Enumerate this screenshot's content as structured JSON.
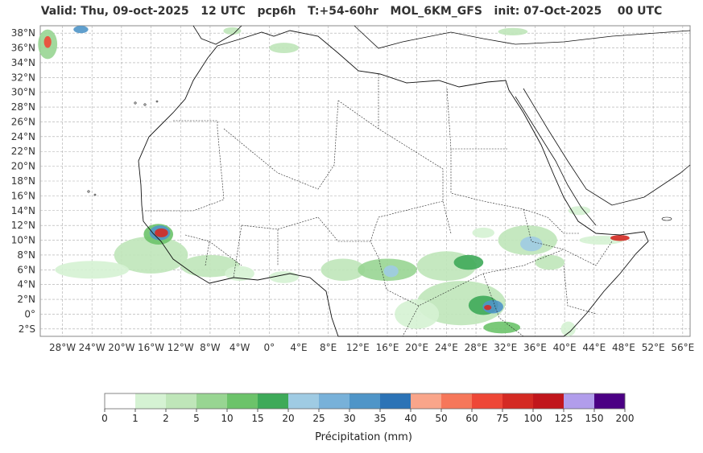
{
  "title": "Valid: Thu, 09-oct-2025   12 UTC   pcp6h   T:+54-60hr   MOL_6KM_GFS   init: 07-Oct-2025    00 UTC",
  "map": {
    "lon_range": [
      -31,
      57
    ],
    "lat_range": [
      -3,
      39
    ],
    "lat_ticks": [
      "38°N",
      "36°N",
      "34°N",
      "32°N",
      "30°N",
      "28°N",
      "26°N",
      "24°N",
      "22°N",
      "20°N",
      "18°N",
      "16°N",
      "14°N",
      "12°N",
      "10°N",
      "8°N",
      "6°N",
      "4°N",
      "2°N",
      "0°",
      "2°S"
    ],
    "lon_ticks": [
      "28°W",
      "24°W",
      "20°W",
      "16°W",
      "12°W",
      "8°W",
      "4°W",
      "0°",
      "4°E",
      "8°E",
      "12°E",
      "16°E",
      "20°E",
      "24°E",
      "28°E",
      "32°E",
      "36°E",
      "40°E",
      "44°E",
      "48°E",
      "52°E",
      "56°E"
    ],
    "gridlines": true
  },
  "colorbar": {
    "label": "Précipitation (mm)",
    "ticks": [
      "0",
      "1",
      "2",
      "5",
      "10",
      "15",
      "20",
      "25",
      "30",
      "35",
      "40",
      "50",
      "60",
      "75",
      "100",
      "125",
      "150",
      "200"
    ],
    "colors": [
      "#ffffff",
      "#d5f2d3",
      "#bfe6b9",
      "#98d592",
      "#6cc36a",
      "#3eaa59",
      "#9fcbe3",
      "#78b1d9",
      "#4f95c8",
      "#2c73b6",
      "#f9a58a",
      "#f6775a",
      "#ee4737",
      "#d42a23",
      "#c1161c",
      "#b19deb",
      "#4b0084"
    ]
  },
  "precip": [
    {
      "kind": "ellipse",
      "lon": -16,
      "lat": 8,
      "rx": 5,
      "ry": 2.5,
      "level": 2
    },
    {
      "kind": "ellipse",
      "lon": -15,
      "lat": 10.8,
      "rx": 2,
      "ry": 1.4,
      "level": 4
    },
    {
      "kind": "ellipse",
      "lon": -14.8,
      "lat": 11.0,
      "rx": 1.4,
      "ry": 1.0,
      "level": 8
    },
    {
      "kind": "ellipse",
      "lon": -14.6,
      "lat": 11.0,
      "rx": 0.9,
      "ry": 0.6,
      "level": 13
    },
    {
      "kind": "ellipse",
      "lon": -24,
      "lat": 6,
      "rx": 5,
      "ry": 1.2,
      "level": 1
    },
    {
      "kind": "ellipse",
      "lon": -8,
      "lat": 6.5,
      "rx": 4,
      "ry": 1.5,
      "level": 2
    },
    {
      "kind": "ellipse",
      "lon": -4,
      "lat": 5.5,
      "rx": 2,
      "ry": 1,
      "level": 1
    },
    {
      "kind": "ellipse",
      "lon": 2,
      "lat": 5,
      "rx": 2,
      "ry": 0.8,
      "level": 1
    },
    {
      "kind": "ellipse",
      "lon": 10,
      "lat": 6,
      "rx": 3,
      "ry": 1.5,
      "level": 2
    },
    {
      "kind": "ellipse",
      "lon": 16,
      "lat": 6,
      "rx": 4,
      "ry": 1.5,
      "level": 3
    },
    {
      "kind": "ellipse",
      "lon": 16.5,
      "lat": 5.8,
      "rx": 1,
      "ry": 0.8,
      "level": 6
    },
    {
      "kind": "ellipse",
      "lon": 24,
      "lat": 6.5,
      "rx": 4,
      "ry": 2,
      "level": 2
    },
    {
      "kind": "ellipse",
      "lon": 27,
      "lat": 7,
      "rx": 2,
      "ry": 1,
      "level": 5
    },
    {
      "kind": "ellipse",
      "lon": 26,
      "lat": 1.5,
      "rx": 6,
      "ry": 3,
      "level": 2
    },
    {
      "kind": "ellipse",
      "lon": 29,
      "lat": 1.2,
      "rx": 2,
      "ry": 1.3,
      "level": 5
    },
    {
      "kind": "ellipse",
      "lon": 30.3,
      "lat": 1.0,
      "rx": 1.4,
      "ry": 0.9,
      "level": 8
    },
    {
      "kind": "ellipse",
      "lon": 29.6,
      "lat": 0.9,
      "rx": 0.5,
      "ry": 0.35,
      "level": 13
    },
    {
      "kind": "ellipse",
      "lon": 31.5,
      "lat": -1.8,
      "rx": 2.5,
      "ry": 0.8,
      "level": 4
    },
    {
      "kind": "ellipse",
      "lon": 20,
      "lat": 0,
      "rx": 3,
      "ry": 2,
      "level": 1
    },
    {
      "kind": "ellipse",
      "lon": 35,
      "lat": 10,
      "rx": 4,
      "ry": 2,
      "level": 2
    },
    {
      "kind": "ellipse",
      "lon": 35.5,
      "lat": 9.5,
      "rx": 1.5,
      "ry": 1,
      "level": 6
    },
    {
      "kind": "ellipse",
      "lon": 38,
      "lat": 7,
      "rx": 2,
      "ry": 1,
      "level": 2
    },
    {
      "kind": "ellipse",
      "lon": 29,
      "lat": 11,
      "rx": 1.5,
      "ry": 0.7,
      "level": 1
    },
    {
      "kind": "ellipse",
      "lon": 45,
      "lat": 10,
      "rx": 3,
      "ry": 0.6,
      "level": 1
    },
    {
      "kind": "ellipse",
      "lon": 47.5,
      "lat": 10.3,
      "rx": 1.3,
      "ry": 0.4,
      "level": 13
    },
    {
      "kind": "ellipse",
      "lon": 42,
      "lat": 14,
      "rx": 1.5,
      "ry": 0.6,
      "level": 1
    },
    {
      "kind": "ellipse",
      "lon": 40.5,
      "lat": -2,
      "rx": 1,
      "ry": 1,
      "level": 1
    },
    {
      "kind": "ellipse",
      "lon": 2,
      "lat": 36,
      "rx": 2,
      "ry": 0.7,
      "level": 2
    },
    {
      "kind": "ellipse",
      "lon": -30,
      "lat": 36.5,
      "rx": 1.3,
      "ry": 2,
      "level": 3
    },
    {
      "kind": "ellipse",
      "lon": -30,
      "lat": 36.8,
      "rx": 0.5,
      "ry": 0.8,
      "level": 12
    },
    {
      "kind": "ellipse",
      "lon": -25.5,
      "lat": 38.5,
      "rx": 1,
      "ry": 0.5,
      "level": 8
    },
    {
      "kind": "ellipse",
      "lon": -5,
      "lat": 38.3,
      "rx": 1.2,
      "ry": 0.5,
      "level": 2
    },
    {
      "kind": "ellipse",
      "lon": 33,
      "lat": 38.2,
      "rx": 2,
      "ry": 0.5,
      "level": 2
    }
  ]
}
